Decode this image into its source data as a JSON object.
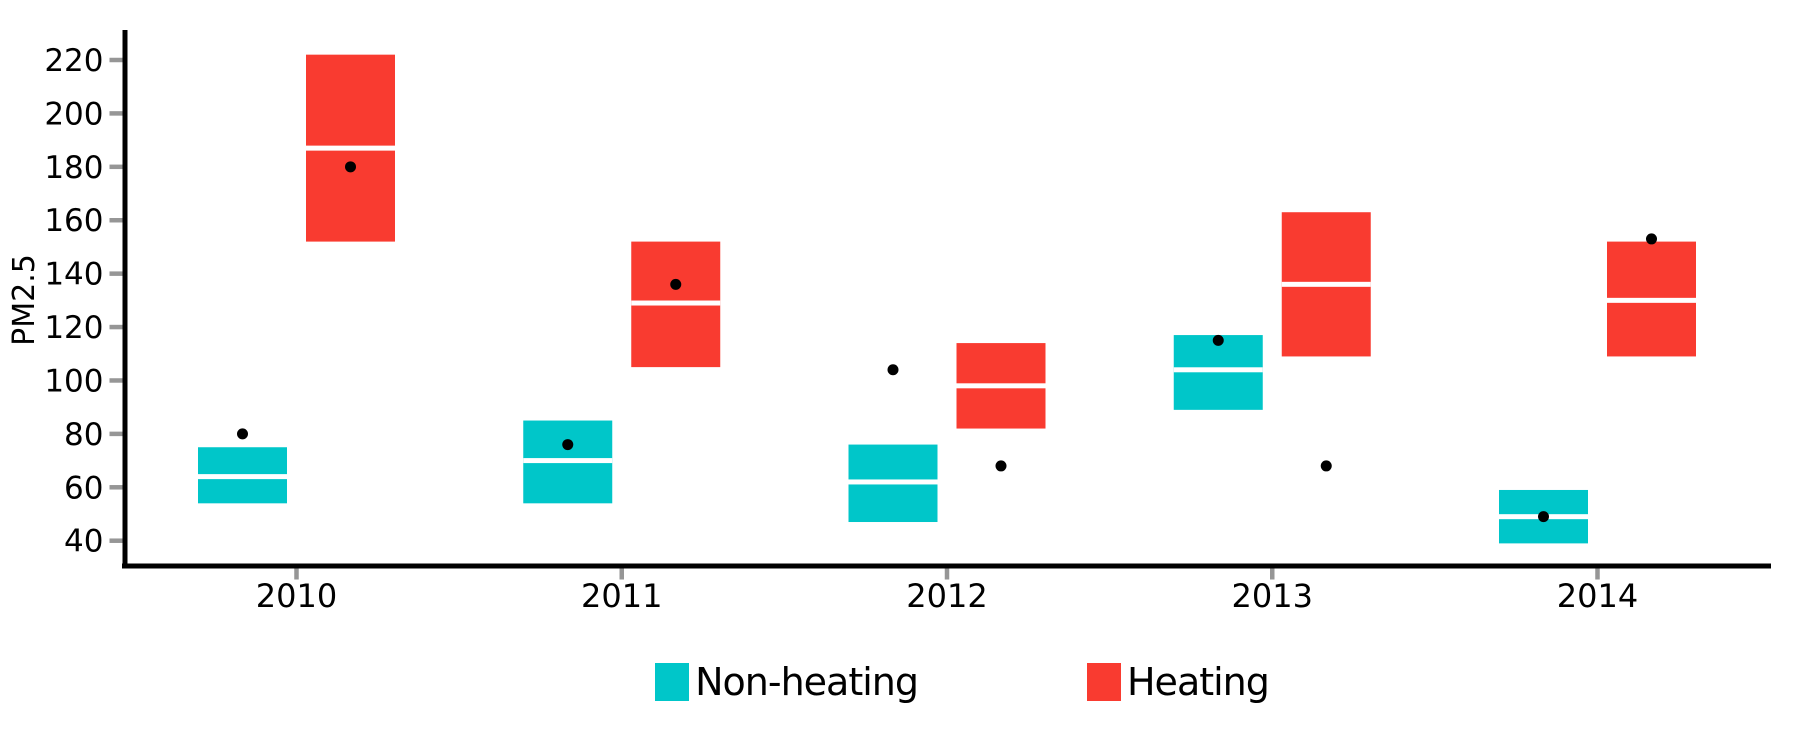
{
  "chart_data": {
    "type": "crossbar",
    "title": "",
    "ylabel": "PM2.5",
    "xlabel": "",
    "categories": [
      "2010",
      "2011",
      "2012",
      "2013",
      "2014"
    ],
    "yticks": [
      220,
      200,
      180,
      160,
      140,
      120,
      100,
      80,
      60,
      40
    ],
    "ylim": [
      37,
      228
    ],
    "grid": false,
    "legend_position": "bottom",
    "axis_color": "#000000",
    "tick_color": "#969696",
    "point_color": "#000000",
    "midline_color": "#ffffff",
    "series": [
      {
        "name": "Non-heating",
        "color": "#00C6C9",
        "boxes": [
          {
            "year": "2010",
            "low": 54,
            "mid": 64,
            "high": 75,
            "point": 80
          },
          {
            "year": "2011",
            "low": 54,
            "mid": 70,
            "high": 85,
            "point": 76
          },
          {
            "year": "2012",
            "low": 47,
            "mid": 62,
            "high": 76,
            "point": 104
          },
          {
            "year": "2013",
            "low": 89,
            "mid": 104,
            "high": 117,
            "point": 115
          },
          {
            "year": "2014",
            "low": 39,
            "mid": 49,
            "high": 59,
            "point": 49
          }
        ]
      },
      {
        "name": "Heating",
        "color": "#F93B30",
        "boxes": [
          {
            "year": "2010",
            "low": 152,
            "mid": 187,
            "high": 222,
            "point": 180
          },
          {
            "year": "2011",
            "low": 105,
            "mid": 129,
            "high": 152,
            "point": 136
          },
          {
            "year": "2012",
            "low": 82,
            "mid": 98,
            "high": 114,
            "point": 68
          },
          {
            "year": "2013",
            "low": 109,
            "mid": 136,
            "high": 163,
            "point": 68
          },
          {
            "year": "2014",
            "low": 109,
            "mid": 130,
            "high": 152,
            "point": 153
          }
        ]
      }
    ]
  }
}
